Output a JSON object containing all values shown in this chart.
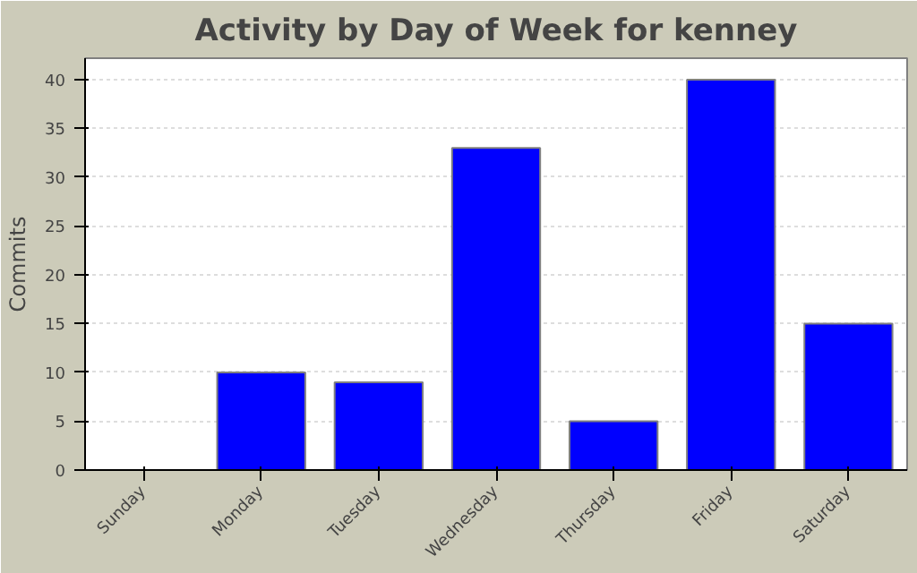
{
  "chart_data": {
    "type": "bar",
    "title": "Activity by Day of Week for kenney",
    "ylabel": "Commits",
    "categories": [
      "Sunday",
      "Monday",
      "Tuesday",
      "Wednesday",
      "Thursday",
      "Friday",
      "Saturday"
    ],
    "values": [
      0,
      10,
      9,
      33,
      5,
      40,
      15
    ],
    "color": "#0000ff",
    "ylim": [
      0,
      42.2
    ],
    "yticks": [
      0,
      5,
      10,
      15,
      20,
      25,
      30,
      35,
      40
    ],
    "grid": "y"
  }
}
